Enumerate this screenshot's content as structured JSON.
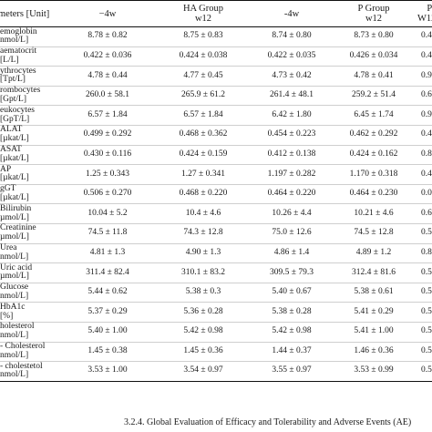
{
  "table": {
    "headers": [
      [
        "meters [Unit]",
        ""
      ],
      [
        "−4w",
        ""
      ],
      [
        "HA Group",
        "w12"
      ],
      [
        "-4w",
        ""
      ],
      [
        "P Group",
        "w12"
      ],
      [
        "Pᵤ",
        "W12 (HA"
      ]
    ],
    "rows": [
      {
        "param": [
          "emoglobin",
          "nmol/L]"
        ],
        "ha_m4w": "8.78 ± 0.82",
        "ha_w12": "8.75 ± 0.83",
        "p_m4w": "8.74 ± 0.80",
        "p_w12": "8.73 ± 0.80",
        "pval": "0.47"
      },
      {
        "param": [
          "aematocrit",
          "[L/L]"
        ],
        "ha_m4w": "0.422 ± 0.036",
        "ha_w12": "0.424 ± 0.038",
        "p_m4w": "0.422 ± 0.035",
        "p_w12": "0.426 ± 0.034",
        "pval": "0.47"
      },
      {
        "param": [
          "ythrocytes",
          "[Tpt/L]"
        ],
        "ha_m4w": "4.78 ± 0.44",
        "ha_w12": "4.77 ± 0.45",
        "p_m4w": "4.73 ± 0.42",
        "p_w12": "4.78 ± 0.41",
        "pval": "0.90"
      },
      {
        "param": [
          "rombocytes",
          "[Gpt/L]"
        ],
        "ha_m4w": "260.0 ± 58.1",
        "ha_w12": "265.9 ± 61.2",
        "p_m4w": "261.4 ± 48.1",
        "p_w12": "259.2 ± 51.4",
        "pval": "0.63"
      },
      {
        "param": [
          "eukocytes",
          "[GpT/L]"
        ],
        "ha_m4w": "6.57 ± 1.84",
        "ha_w12": "6.57 ± 1.84",
        "p_m4w": "6.42 ± 1.80",
        "p_w12": "6.45 ± 1.74",
        "pval": "0.90"
      },
      {
        "param": [
          "ALAT",
          "[µkat/L]"
        ],
        "ha_m4w": "0.499 ± 0.292",
        "ha_w12": "0.468 ± 0.362",
        "p_m4w": "0.454 ± 0.223",
        "p_w12": "0.462 ± 0.292",
        "pval": "0.48"
      },
      {
        "param": [
          "ASAT",
          "[µkat/L]"
        ],
        "ha_m4w": "0.430 ± 0.116",
        "ha_w12": "0.424 ± 0.159",
        "p_m4w": "0.412 ± 0.138",
        "p_w12": "0.424 ± 0.162",
        "pval": "0.85"
      },
      {
        "param": [
          "AP",
          "[µkat/L]"
        ],
        "ha_m4w": "1.25 ± 0.343",
        "ha_w12": "1.27 ± 0.341",
        "p_m4w": "1.197 ± 0.282",
        "p_w12": "1.170 ± 0.318",
        "pval": "0.47"
      },
      {
        "param": [
          "gGT",
          "[µkat/L]"
        ],
        "ha_m4w": "0.506 ± 0.270",
        "ha_w12": "0.468 ± 0.220",
        "p_m4w": "0.464 ± 0.220",
        "p_w12": "0.464 ± 0.230",
        "pval": "0.07"
      },
      {
        "param": [
          "Bilirubin",
          "µmol/L]"
        ],
        "ha_m4w": "10.04 ± 5.2",
        "ha_w12": "10.4 ± 4.6",
        "p_m4w": "10.26 ± 4.4",
        "p_w12": "10.21 ± 4.6",
        "pval": "0.66"
      },
      {
        "param": [
          "Creatinine",
          "µmol/L]"
        ],
        "ha_m4w": "74.5 ± 11.8",
        "ha_w12": "74.3 ± 12.8",
        "p_m4w": "75.0 ± 12.6",
        "p_w12": "74.5 ± 12.8",
        "pval": "0.56"
      },
      {
        "param": [
          "Urea",
          "nmol/L]"
        ],
        "ha_m4w": "4.81 ± 1.3",
        "ha_w12": "4.90 ± 1.3",
        "p_m4w": "4.86 ± 1.4",
        "p_w12": "4.89 ± 1.2",
        "pval": "0.83"
      },
      {
        "param": [
          "Uric acid",
          "µmol/L]"
        ],
        "ha_m4w": "311.4 ± 82.4",
        "ha_w12": "310.1 ± 83.2",
        "p_m4w": "309.5 ± 79.3",
        "p_w12": "312.4 ± 81.6",
        "pval": "0.56"
      },
      {
        "param": [
          "Glucose",
          "nmol/L]"
        ],
        "ha_m4w": "5.44 ± 0.62",
        "ha_w12": "5.38 ± 0.3",
        "p_m4w": "5.40 ± 0.67",
        "p_w12": "5.38 ± 0.61",
        "pval": "0.56"
      },
      {
        "param": [
          "HbA1c",
          "[%]"
        ],
        "ha_m4w": "5.37 ± 0.29",
        "ha_w12": "5.36 ± 0.28",
        "p_m4w": "5.38 ± 0.28",
        "p_w12": "5.41 ± 0.29",
        "pval": "0.56"
      },
      {
        "param": [
          "holesterol",
          "nmol/L]"
        ],
        "ha_m4w": "5.40 ± 1.00",
        "ha_w12": "5.42 ± 0.98",
        "p_m4w": "5.42 ± 0.98",
        "p_w12": "5.41 ± 1.00",
        "pval": "0.56"
      },
      {
        "param": [
          "- Cholesterol",
          "nmol/L]"
        ],
        "ha_m4w": "1.45 ± 0.38",
        "ha_w12": "1.45 ± 0.36",
        "p_m4w": "1.44 ± 0.37",
        "p_w12": "1.46 ± 0.36",
        "pval": "0.56"
      },
      {
        "param": [
          "- cholestetol",
          "nmol/L]"
        ],
        "ha_m4w": "3.53 ± 1.00",
        "ha_w12": "3.54 ± 0.97",
        "p_m4w": "3.55 ± 0.97",
        "p_w12": "3.53 ± 0.99",
        "pval": "0.56"
      }
    ]
  },
  "section_heading": "3.2.4. Global Evaluation of Efficacy and Tolerability and Adverse Events (AE)"
}
